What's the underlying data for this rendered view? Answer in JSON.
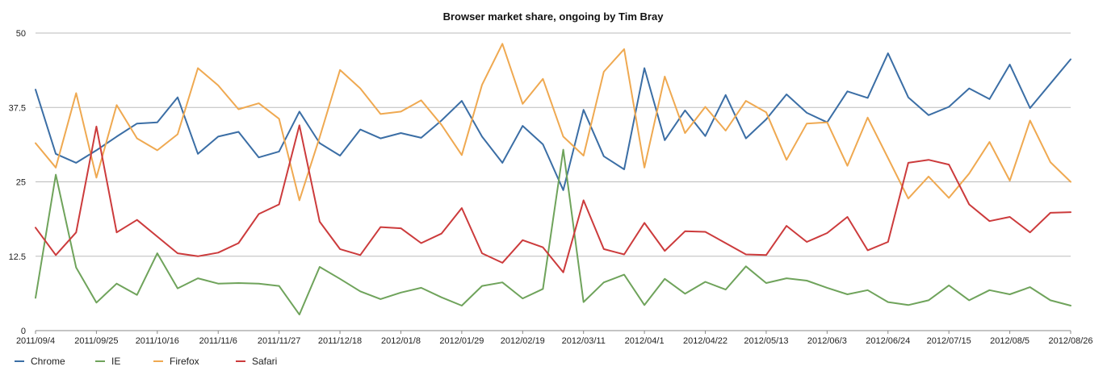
{
  "chart_data": {
    "type": "line",
    "title": "Browser market share, ongoing by Tim Bray",
    "xlabel": "",
    "ylabel": "",
    "ylim": [
      0,
      50
    ],
    "yticks": [
      0,
      12.5,
      25,
      37.5,
      50
    ],
    "ytick_labels": [
      "0",
      "12.5",
      "25",
      "37.5",
      "50"
    ],
    "grid": true,
    "legend_position": "bottom-left",
    "x_tick_labels": [
      "2011/09/4",
      "2011/09/25",
      "2011/10/16",
      "2011/11/6",
      "2011/11/27",
      "2011/12/18",
      "2012/01/8",
      "2012/01/29",
      "2012/02/19",
      "2012/03/11",
      "2012/04/1",
      "2012/04/22",
      "2012/05/13",
      "2012/06/3",
      "2012/06/24",
      "2012/07/15",
      "2012/08/5",
      "2012/08/26"
    ],
    "series": [
      {
        "name": "Chrome",
        "color": "#3b6ea5",
        "values": [
          40.5,
          29.7,
          28.2,
          30.3,
          32.6,
          34.8,
          35.0,
          39.2,
          29.7,
          32.6,
          33.4,
          29.1,
          30.1,
          36.8,
          31.5,
          29.4,
          33.8,
          32.3,
          33.2,
          32.4,
          35.3,
          38.6,
          32.6,
          28.2,
          34.4,
          31.3,
          23.6,
          37.1,
          29.3,
          27.1,
          44.1,
          32.0,
          37.0,
          32.7,
          39.6,
          32.3,
          35.5,
          39.7,
          36.6,
          35.0,
          40.2,
          39.1,
          46.6,
          39.2,
          36.2,
          37.6,
          40.7,
          38.9,
          44.7,
          37.4,
          41.5,
          45.6
        ]
      },
      {
        "name": "IE",
        "color": "#6fa35b",
        "values": [
          5.5,
          26.2,
          10.6,
          4.7,
          7.9,
          6.0,
          13.0,
          7.1,
          8.8,
          7.9,
          8.0,
          7.9,
          7.5,
          2.7,
          10.7,
          8.7,
          6.6,
          5.3,
          6.4,
          7.2,
          5.6,
          4.2,
          7.5,
          8.1,
          5.4,
          7.0,
          30.4,
          4.8,
          8.1,
          9.4,
          4.3,
          8.7,
          6.2,
          8.2,
          6.9,
          10.8,
          8.0,
          8.8,
          8.4,
          7.2,
          6.1,
          6.8,
          4.8,
          4.3,
          5.1,
          7.6,
          5.1,
          6.8,
          6.1,
          7.3,
          5.1,
          4.2
        ]
      },
      {
        "name": "Firefox",
        "color": "#efa951",
        "values": [
          31.5,
          27.4,
          39.9,
          25.7,
          37.9,
          32.3,
          30.3,
          33.0,
          44.1,
          41.2,
          37.2,
          38.2,
          35.6,
          21.9,
          32.5,
          43.8,
          40.7,
          36.4,
          36.8,
          38.7,
          34.6,
          29.5,
          41.3,
          48.2,
          38.1,
          42.3,
          32.6,
          29.4,
          43.5,
          47.3,
          27.4,
          42.7,
          33.2,
          37.6,
          33.6,
          38.6,
          36.7,
          28.7,
          34.8,
          35.0,
          27.7,
          35.8,
          29.0,
          22.2,
          25.9,
          22.3,
          26.4,
          31.7,
          25.2,
          35.3,
          28.3,
          25.0
        ]
      },
      {
        "name": "Safari",
        "color": "#cc3b3c",
        "values": [
          17.3,
          12.7,
          16.5,
          34.3,
          16.5,
          18.6,
          15.8,
          13.0,
          12.5,
          13.1,
          14.7,
          19.6,
          21.2,
          34.5,
          18.3,
          13.7,
          12.7,
          17.4,
          17.2,
          14.7,
          16.3,
          20.6,
          13.0,
          11.4,
          15.2,
          14.0,
          9.8,
          21.9,
          13.7,
          12.8,
          18.1,
          13.4,
          16.7,
          16.6,
          14.7,
          12.8,
          12.7,
          17.6,
          14.9,
          16.4,
          19.1,
          13.5,
          14.9,
          28.2,
          28.7,
          27.9,
          21.2,
          18.4,
          19.1,
          16.5,
          19.8,
          19.9
        ]
      }
    ]
  }
}
